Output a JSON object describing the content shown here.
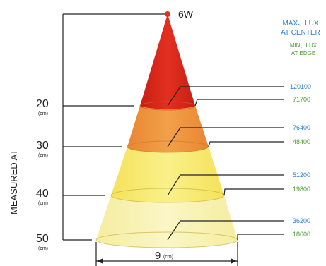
{
  "power_label": "6W",
  "legend": {
    "max_line1": "MAX、LUX",
    "max_line2": "AT CENTER",
    "min_line1": "MIN、LUX",
    "min_line2": "AT EDGE",
    "max_color": "#2f80cc",
    "min_color": "#4c9a34"
  },
  "axis_label": "MEASURED AT",
  "distance_unit": "(cm)",
  "beam_width": {
    "value": "9",
    "unit": "(cm)"
  },
  "levels": [
    {
      "distance": "20",
      "center_lux": "120100",
      "edge_lux": "71700"
    },
    {
      "distance": "30",
      "center_lux": "76400",
      "edge_lux": "48400"
    },
    {
      "distance": "40",
      "center_lux": "51200",
      "edge_lux": "19800"
    },
    {
      "distance": "50",
      "center_lux": "36200",
      "edge_lux": "18600"
    }
  ],
  "colors": {
    "red": "#dd2a1c",
    "orange": "#ee8e3c",
    "yellow": "#f7ec6c",
    "pale": "#f8f3b2"
  }
}
